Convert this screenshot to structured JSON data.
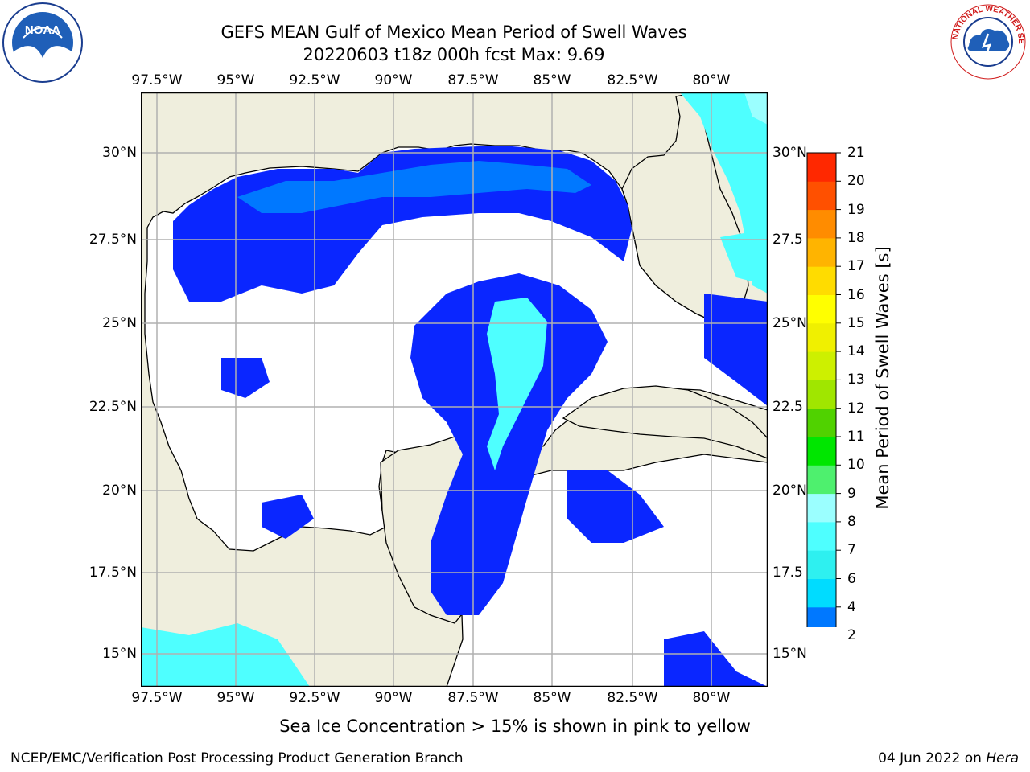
{
  "title_line1": "GEFS MEAN Gulf of Mexico Mean Period of Swell Waves",
  "title_line2": "20220603 t18z 000h fcst   Max: 9.69",
  "lon_ticks": [
    "97.5°W",
    "95°W",
    "92.5°W",
    "90°W",
    "87.5°W",
    "85°W",
    "82.5°W",
    "80°W"
  ],
  "lat_ticks_left": [
    "30°N",
    "27.5°N",
    "25°N",
    "22.5°N",
    "20°N",
    "17.5°N",
    "15°N"
  ],
  "lat_ticks_right": [
    "30°N",
    "27.5",
    "25°N",
    "22.5",
    "20°N",
    "17.5",
    "15°N"
  ],
  "colorbar": {
    "title": "Mean Period of Swell Waves [s]",
    "labels": [
      "2",
      "4",
      "6",
      "7",
      "8",
      "9",
      "10",
      "11",
      "12",
      "13",
      "14",
      "15",
      "16",
      "17",
      "18",
      "19",
      "20",
      "21"
    ],
    "colors": [
      "#0a26ff",
      "#0078ff",
      "#00dcff",
      "#2ef0f0",
      "#4effff",
      "#9bffff",
      "#4ef06e",
      "#00e600",
      "#50d200",
      "#a0e600",
      "#cdf000",
      "#f0f000",
      "#ffff00",
      "#ffdc00",
      "#ffb400",
      "#ff8c00",
      "#ff5000",
      "#ff2800",
      "#ff0000"
    ]
  },
  "colors": {
    "land": "#efeedd",
    "ocean": "#ffffff",
    "grid": "#b0b0b0"
  },
  "footnote": "Sea Ice Concentration > 15% is shown in pink to yellow",
  "credit": "NCEP/EMC/Verification Post Processing Product Generation Branch",
  "date_text": "04 Jun 2022 on ",
  "date_host": "Hera",
  "logos": {
    "left": "noaa-logo",
    "right": "nws-logo"
  }
}
